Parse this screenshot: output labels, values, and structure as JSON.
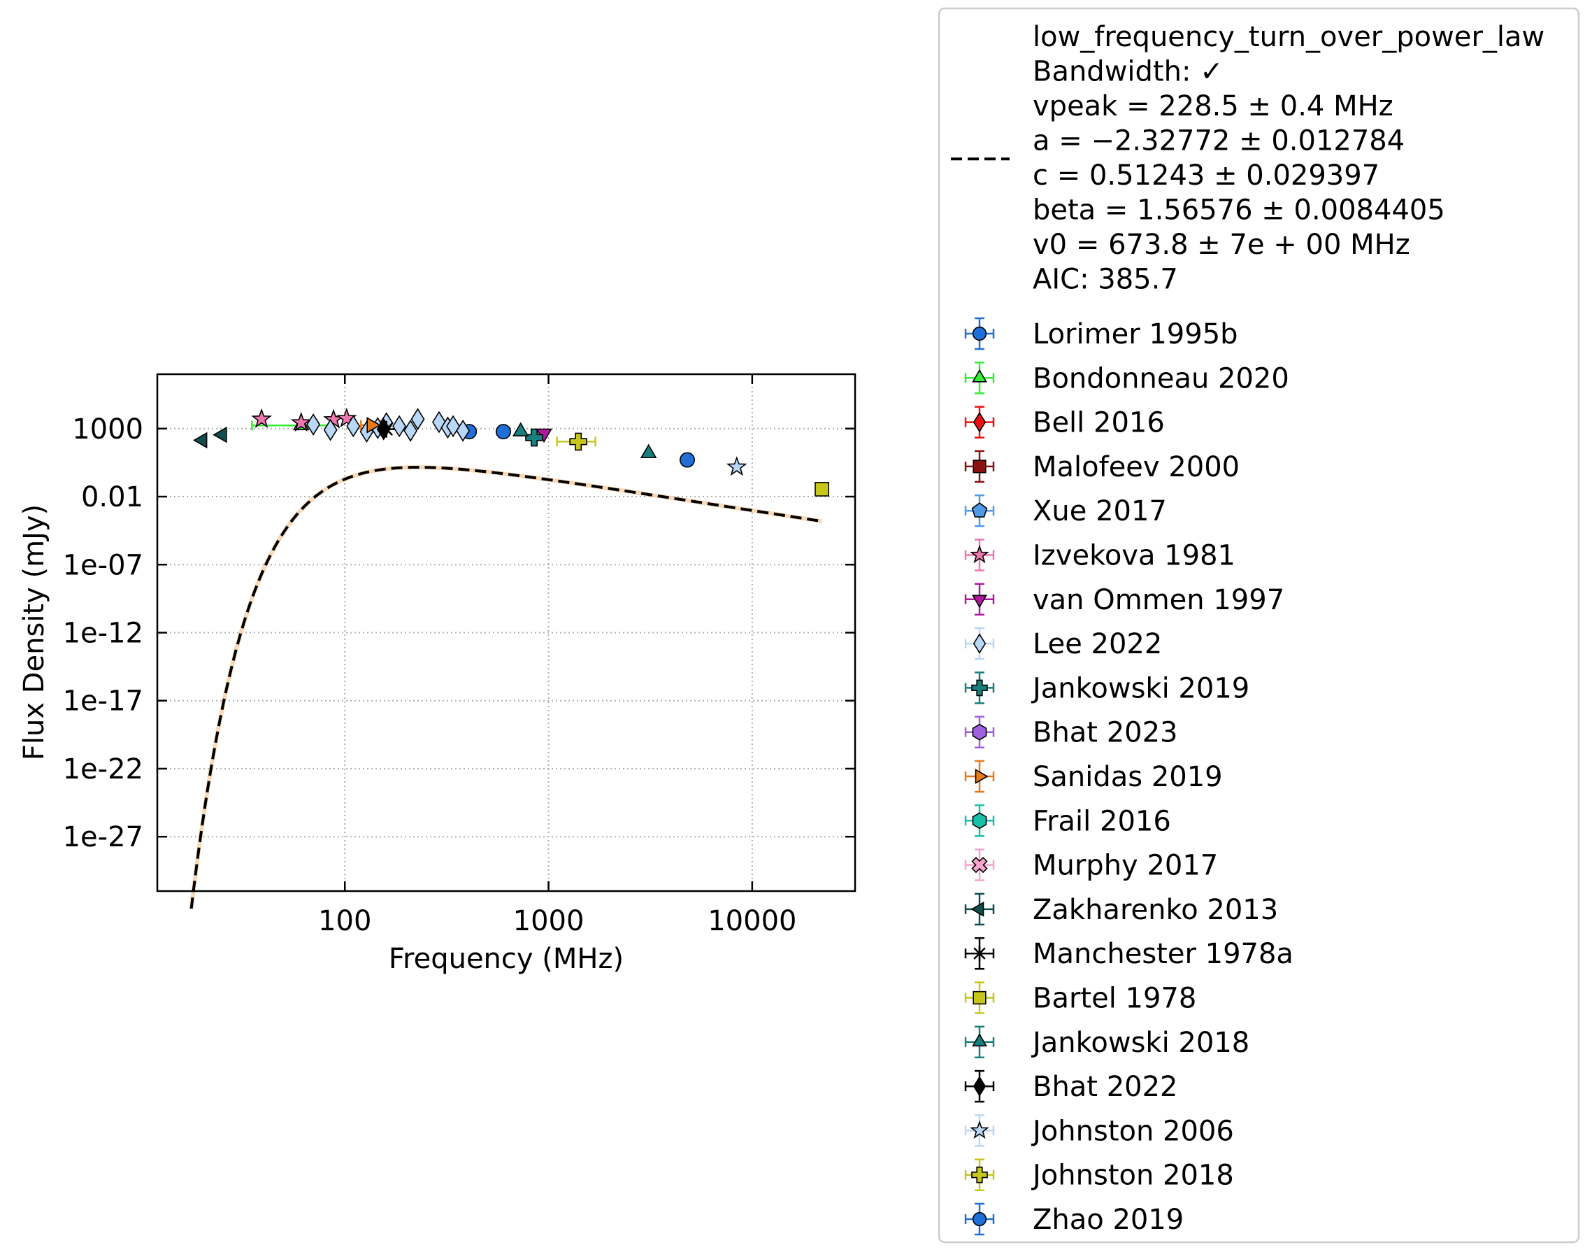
{
  "chart_data": {
    "type": "scatter",
    "xlabel": "Frequency (MHz)",
    "ylabel": "Flux Density (mJy)",
    "x_scale": "log",
    "y_scale": "log",
    "xlim": [
      12,
      32000
    ],
    "ylim": [
      1e-31,
      10000000.0
    ],
    "x_ticks": [
      {
        "v": 100,
        "label": "100"
      },
      {
        "v": 1000,
        "label": "1000"
      },
      {
        "v": 10000,
        "label": "10000"
      }
    ],
    "y_ticks": [
      {
        "v": 1000,
        "label": "1000"
      },
      {
        "v": 0.01,
        "label": "0.01"
      },
      {
        "v": 1e-07,
        "label": "1e-07"
      },
      {
        "v": 1e-12,
        "label": "1e-12"
      },
      {
        "v": 1e-17,
        "label": "1e-17"
      },
      {
        "v": 1e-22,
        "label": "1e-22"
      },
      {
        "v": 1e-27,
        "label": "1e-27"
      }
    ],
    "grid": true,
    "legend_position": "outside-right",
    "fit": {
      "model": "low_frequency_turn_over_power_law",
      "vpeak": 228.5,
      "a": -2.32772,
      "c": 0.51243,
      "beta": 1.56576,
      "v0": 673.8,
      "x_range": [
        17,
        22000
      ],
      "legend_lines": [
        "low_frequency_turn_over_power_law",
        "Bandwidth: ✓",
        "vpeak = 228.5 ± 0.4 MHz",
        "a = −2.32772 ± 0.012784",
        "c = 0.51243 ± 0.029397",
        "beta = 1.56576 ± 0.0084405",
        "v0 = 673.8 ± 7e + 00 MHz",
        "AIC: 385.7"
      ]
    },
    "series": [
      {
        "name": "Lorimer 1995b",
        "marker": "circle",
        "color": "#1f6fd6",
        "points": [
          [
            408,
            600
          ]
        ]
      },
      {
        "name": "Bondonneau 2020",
        "marker": "triangle-up",
        "color": "#33ee33",
        "points": [
          [
            61,
            1700
          ]
        ],
        "xerr": [
          [
            35,
            88
          ]
        ]
      },
      {
        "name": "Bell 2016",
        "marker": "diamond",
        "color": "#ee1111",
        "points": []
      },
      {
        "name": "Malofeev 2000",
        "marker": "square",
        "color": "#8b1010",
        "points": []
      },
      {
        "name": "Xue 2017",
        "marker": "pentagon",
        "color": "#4f9be8",
        "points": []
      },
      {
        "name": "Izvekova 1981",
        "marker": "star",
        "color": "#ee77b0",
        "points": [
          [
            39,
            5000
          ],
          [
            61,
            2700
          ],
          [
            88,
            4500
          ],
          [
            102,
            5500
          ]
        ]
      },
      {
        "name": "van Ommen 1997",
        "marker": "triangle-down",
        "color": "#b0189f",
        "points": [
          [
            950,
            450
          ]
        ]
      },
      {
        "name": "Lee 2022",
        "marker": "diamond",
        "color": "#b9d7f7",
        "points": [
          [
            70,
            2000
          ],
          [
            85,
            800
          ],
          [
            110,
            1500
          ],
          [
            128,
            600
          ],
          [
            145,
            1100
          ],
          [
            160,
            2500
          ],
          [
            185,
            1500
          ],
          [
            210,
            700
          ],
          [
            228,
            5000
          ],
          [
            290,
            3000
          ],
          [
            320,
            1200
          ],
          [
            340,
            1500
          ],
          [
            380,
            700
          ]
        ]
      },
      {
        "name": "Jankowski 2019",
        "marker": "plus",
        "color": "#17807f",
        "points": [
          [
            850,
            220
          ]
        ]
      },
      {
        "name": "Bhat 2023",
        "marker": "hexagon",
        "color": "#a060e0",
        "points": []
      },
      {
        "name": "Sanidas 2019",
        "marker": "triangle-right",
        "color": "#e87a1a",
        "points": [
          [
            135,
            1800
          ]
        ],
        "xerr": [
          [
            120,
            151
          ]
        ]
      },
      {
        "name": "Frail 2016",
        "marker": "hexagon",
        "color": "#19c0a8",
        "points": []
      },
      {
        "name": "Murphy 2017",
        "marker": "x-filled",
        "color": "#f7a5cc",
        "points": []
      },
      {
        "name": "Zakharenko 2013",
        "marker": "triangle-left",
        "color": "#0f4f4f",
        "points": [
          [
            20,
            140
          ],
          [
            25,
            350
          ]
        ]
      },
      {
        "name": "Manchester 1978a",
        "marker": "asterisk",
        "color": "#000000",
        "points": [
          [
            160,
            900
          ]
        ]
      },
      {
        "name": "Bartel 1978",
        "marker": "square",
        "color": "#c7c71b",
        "points": [
          [
            22000,
            0.035
          ]
        ]
      },
      {
        "name": "Jankowski 2018",
        "marker": "triangle-up",
        "color": "#17807f",
        "points": [
          [
            730,
            600
          ],
          [
            3100,
            15
          ]
        ]
      },
      {
        "name": "Bhat 2022",
        "marker": "diamond",
        "color": "#000000",
        "points": [
          [
            155,
            900
          ]
        ]
      },
      {
        "name": "Johnston 2006",
        "marker": "star",
        "color": "#b9d7f7",
        "points": [
          [
            8400,
            1.5
          ]
        ]
      },
      {
        "name": "Johnston 2018",
        "marker": "plus",
        "color": "#c7c71b",
        "points": [
          [
            1400,
            110
          ]
        ],
        "xerr": [
          [
            1100,
            1700
          ]
        ]
      },
      {
        "name": "Zhao 2019",
        "marker": "circle",
        "color": "#1f6fd6",
        "points": [
          [
            600,
            600
          ],
          [
            4800,
            5
          ]
        ]
      }
    ]
  }
}
